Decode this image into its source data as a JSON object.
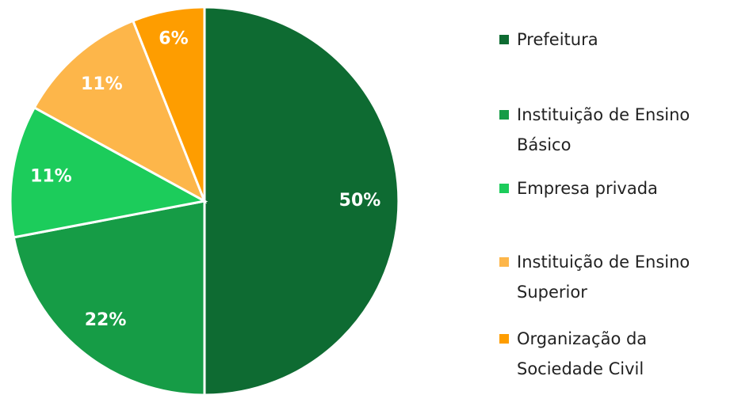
{
  "chart_data": {
    "type": "pie",
    "categories": [
      "Prefeitura",
      "Instituição de Ensino Básico",
      "Empresa privada",
      "Instituição de Ensino Superior",
      "Organização da Sociedade Civil"
    ],
    "values": [
      50,
      22,
      11,
      11,
      6
    ],
    "value_labels": [
      "50%",
      "22%",
      "11%",
      "11%",
      "6%"
    ],
    "colors": [
      "#0e6b32",
      "#169c46",
      "#1ccc5b",
      "#fdb64a",
      "#fe9d00"
    ],
    "legend": "right"
  }
}
